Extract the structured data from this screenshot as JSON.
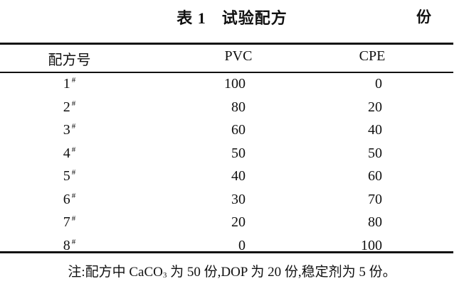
{
  "table": {
    "label": "表 1",
    "title": "试验配方",
    "unit": "份",
    "headers": [
      "配方号",
      "PVC",
      "CPE"
    ],
    "rows": [
      {
        "id": "1",
        "mark": "#",
        "pvc": "100",
        "cpe": "0"
      },
      {
        "id": "2",
        "mark": "#",
        "pvc": "80",
        "cpe": "20"
      },
      {
        "id": "3",
        "mark": "#",
        "pvc": "60",
        "cpe": "40"
      },
      {
        "id": "4",
        "mark": "#",
        "pvc": "50",
        "cpe": "50"
      },
      {
        "id": "5",
        "mark": "#",
        "pvc": "40",
        "cpe": "60"
      },
      {
        "id": "6",
        "mark": "#",
        "pvc": "30",
        "cpe": "70"
      },
      {
        "id": "7",
        "mark": "#",
        "pvc": "20",
        "cpe": "80"
      },
      {
        "id": "8",
        "mark": "#",
        "pvc": "0",
        "cpe": "100"
      }
    ],
    "note": {
      "before": "注:配方中 CaCO",
      "subscript": "3",
      "after": " 为 50 份,DOP 为 20 份,稳定剂为 5 份。"
    }
  }
}
